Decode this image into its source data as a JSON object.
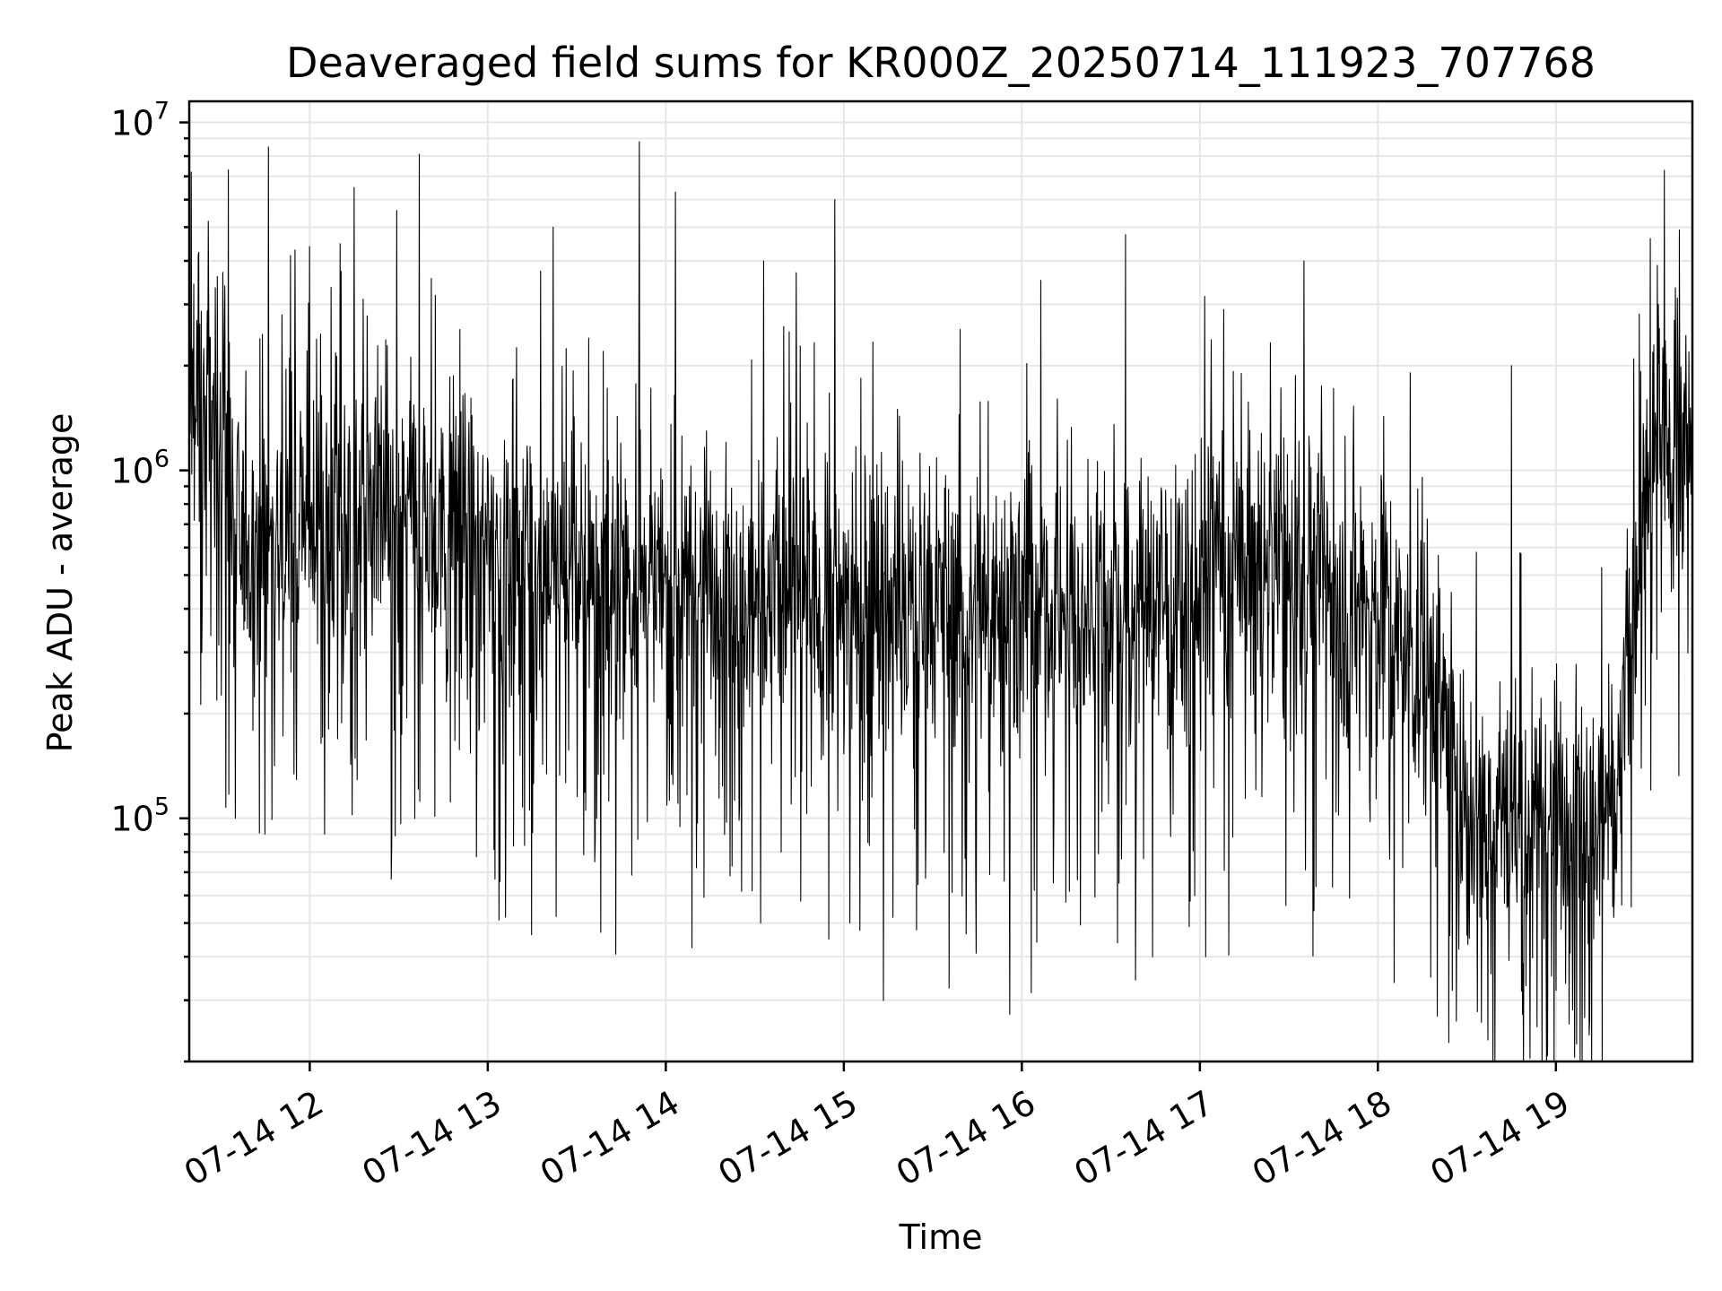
{
  "chart_data": {
    "type": "line",
    "title": "Deaveraged field sums for KR000Z_20250714_111923_707768",
    "xlabel": "Time",
    "ylabel": "Peak ADU - average",
    "xlim": [
      "2025-07-14T11:19:23",
      "2025-07-14T19:46:00"
    ],
    "ylim": [
      20000,
      11500000
    ],
    "yscale": "log",
    "grid": true,
    "x_ticks": [
      {
        "t": "2025-07-14T12:00",
        "label": "07-14 12"
      },
      {
        "t": "2025-07-14T13:00",
        "label": "07-14 13"
      },
      {
        "t": "2025-07-14T14:00",
        "label": "07-14 14"
      },
      {
        "t": "2025-07-14T15:00",
        "label": "07-14 15"
      },
      {
        "t": "2025-07-14T16:00",
        "label": "07-14 16"
      },
      {
        "t": "2025-07-14T17:00",
        "label": "07-14 17"
      },
      {
        "t": "2025-07-14T18:00",
        "label": "07-14 18"
      },
      {
        "t": "2025-07-14T19:00",
        "label": "07-14 19"
      }
    ],
    "y_ticks": [
      {
        "value": 100000,
        "base": "10",
        "exp": "5"
      },
      {
        "value": 1000000,
        "base": "10",
        "exp": "6"
      },
      {
        "value": 10000000,
        "base": "10",
        "exp": "7"
      }
    ],
    "series": [
      {
        "color": "#000000",
        "baseline": [
          [
            "2025-07-14T11:19:23",
            1500000
          ],
          [
            "2025-07-14T11:30",
            1400000
          ],
          [
            "2025-07-14T11:35",
            600000
          ],
          [
            "2025-07-14T11:50",
            650000
          ],
          [
            "2025-07-14T12:10",
            800000
          ],
          [
            "2025-07-14T12:40",
            750000
          ],
          [
            "2025-07-14T13:00",
            600000
          ],
          [
            "2025-07-14T14:00",
            480000
          ],
          [
            "2025-07-14T15:00",
            430000
          ],
          [
            "2025-07-14T16:00",
            400000
          ],
          [
            "2025-07-14T16:50",
            450000
          ],
          [
            "2025-07-14T17:10",
            550000
          ],
          [
            "2025-07-14T17:40",
            520000
          ],
          [
            "2025-07-14T18:00",
            400000
          ],
          [
            "2025-07-14T18:20",
            250000
          ],
          [
            "2025-07-14T18:30",
            110000
          ],
          [
            "2025-07-14T19:00",
            100000
          ],
          [
            "2025-07-14T19:20",
            120000
          ],
          [
            "2025-07-14T19:30",
            700000
          ],
          [
            "2025-07-14T19:35",
            1400000
          ],
          [
            "2025-07-14T19:46",
            1200000
          ]
        ],
        "spikes": [
          [
            "2025-07-14T11:20",
            7200000
          ],
          [
            "2025-07-14T11:46",
            8500000
          ],
          [
            "2025-07-14T11:55",
            4300000
          ],
          [
            "2025-07-14T12:00",
            4400000
          ],
          [
            "2025-07-14T12:15",
            6500000
          ],
          [
            "2025-07-14T12:37",
            8100000
          ],
          [
            "2025-07-14T13:22",
            5000000
          ],
          [
            "2025-07-14T13:51",
            8800000
          ],
          [
            "2025-07-14T14:33",
            4000000
          ],
          [
            "2025-07-14T14:44",
            3700000
          ],
          [
            "2025-07-14T14:57",
            6000000
          ],
          [
            "2025-07-14T17:08",
            2900000
          ],
          [
            "2025-07-14T17:35",
            4000000
          ],
          [
            "2025-07-14T18:45",
            2000000
          ],
          [
            "2025-07-14T19:40",
            2700000
          ]
        ],
        "dips": [
          [
            "2025-07-14T11:35",
            100000
          ],
          [
            "2025-07-14T12:05",
            90000
          ],
          [
            "2025-07-14T13:06",
            52000
          ],
          [
            "2025-07-14T13:38",
            47000
          ],
          [
            "2025-07-14T14:32",
            50000
          ],
          [
            "2025-07-14T15:02",
            50000
          ],
          [
            "2025-07-14T16:05",
            44000
          ],
          [
            "2025-07-14T16:44",
            40000
          ],
          [
            "2025-07-14T17:02",
            40000
          ],
          [
            "2025-07-14T18:20",
            27000
          ],
          [
            "2025-07-14T18:25",
            32000
          ],
          [
            "2025-07-14T18:50",
            33000
          ],
          [
            "2025-07-14T19:00",
            32000
          ]
        ]
      }
    ]
  }
}
